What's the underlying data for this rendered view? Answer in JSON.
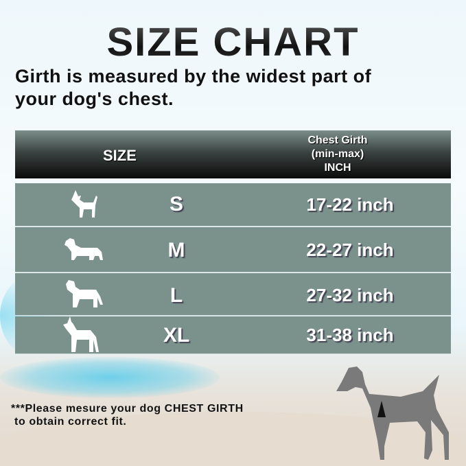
{
  "title": "SIZE CHART",
  "subtitle": [
    "Girth is measured by the widest part of",
    "your dog's chest."
  ],
  "table": {
    "headers": {
      "size": "SIZE",
      "girth": [
        "Chest Girth",
        "(min-max)",
        "INCH"
      ]
    },
    "rows": [
      {
        "icon": "chihuahua-icon",
        "size": "S",
        "girth": "17-22 inch"
      },
      {
        "icon": "dachshund-icon",
        "size": "M",
        "girth": "22-27 inch"
      },
      {
        "icon": "mastiff-icon",
        "size": "L",
        "girth": "27-32 inch"
      },
      {
        "icon": "great-dane-icon",
        "size": "XL",
        "girth": "31-38 inch"
      }
    ]
  },
  "note": [
    "***Please mesure your dog CHEST GIRTH",
    " to obtain correct fit."
  ],
  "colors": {
    "row": "#7b918c",
    "header_dark": "#0a0a0a",
    "dog_figure": "#7a7a7a"
  }
}
